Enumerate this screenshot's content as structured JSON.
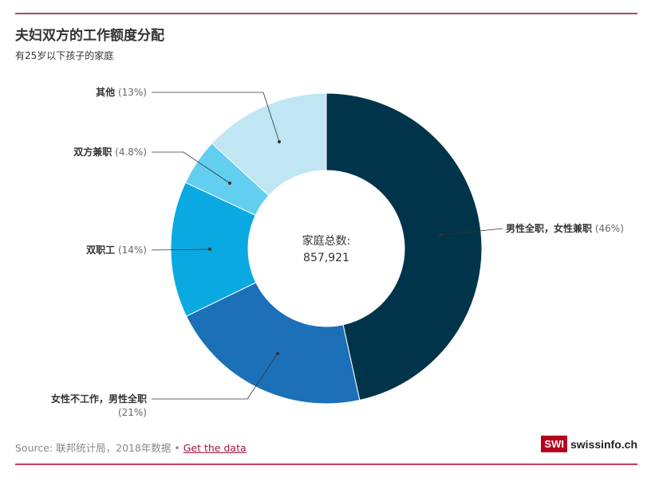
{
  "title": "夫妇双方的工作额度分配",
  "subtitle": "有25岁以下孩子的家庭",
  "chart_data": {
    "type": "pie",
    "donut": true,
    "center_label": "家庭总数:",
    "center_value": "857,921",
    "slices": [
      {
        "label": "男性全职，女性兼职",
        "pct_label": "(46%)",
        "value": 46,
        "color": "#00344a"
      },
      {
        "label": "女性不工作，男性全职",
        "pct_label": "(21%)",
        "value": 21,
        "color": "#1b70b8"
      },
      {
        "label": "双职工",
        "pct_label": "(14%)",
        "value": 14,
        "color": "#0aa9e2"
      },
      {
        "label": "双方兼职",
        "pct_label": "(4.8%)",
        "value": 4.8,
        "color": "#62cff1"
      },
      {
        "label": "其他",
        "pct_label": "(13%)",
        "value": 13,
        "color": "#bfe6f2"
      }
    ]
  },
  "footer": {
    "source": "Source: 联邦统计局，2018年数据 • ",
    "link": "Get the data"
  },
  "logo": {
    "box": "SWI",
    "text": "swissinfo.ch"
  }
}
